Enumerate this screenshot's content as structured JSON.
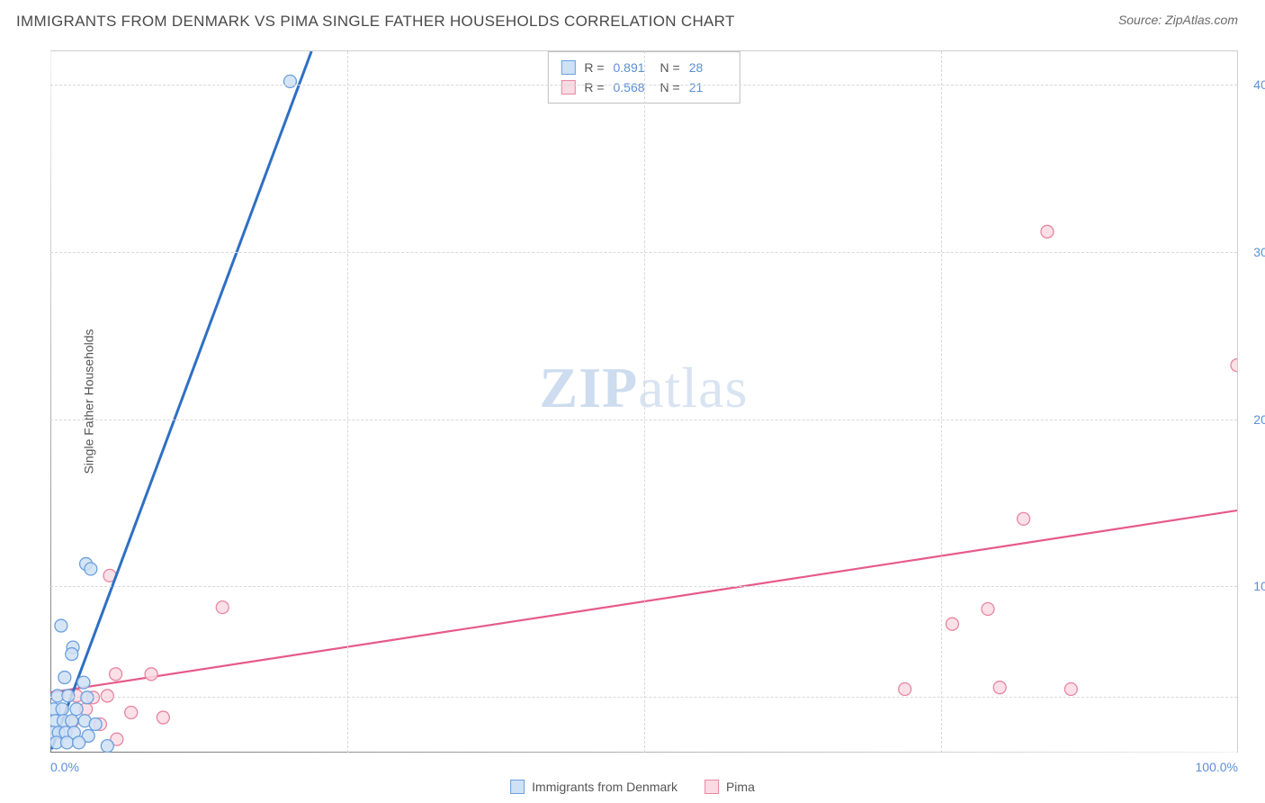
{
  "title": "IMMIGRANTS FROM DENMARK VS PIMA SINGLE FATHER HOUSEHOLDS CORRELATION CHART",
  "source_label": "Source: ZipAtlas.com",
  "y_axis_label": "Single Father Households",
  "watermark": {
    "zip": "ZIP",
    "atlas": "atlas"
  },
  "chart": {
    "type": "scatter",
    "xlim": [
      0,
      100
    ],
    "ylim": [
      0,
      42
    ],
    "x_ticks": [
      0,
      25,
      50,
      75,
      100
    ],
    "x_tick_labels": [
      "0.0%",
      "",
      "",
      "",
      "100.0%"
    ],
    "y_ticks": [
      10,
      20,
      30,
      40
    ],
    "y_tick_labels": [
      "10.0%",
      "20.0%",
      "30.0%",
      "40.0%"
    ],
    "y_grid_extra": [
      3.4
    ],
    "background_color": "#ffffff",
    "grid_color": "#d8d8d8",
    "marker_radius": 7,
    "marker_stroke_width": 1.3,
    "trend_line_width_blue": 3,
    "trend_line_width_pink": 2.2
  },
  "series": {
    "denmark": {
      "label": "Immigrants from Denmark",
      "fill": "#cfe1f5",
      "stroke": "#6aa0de",
      "line_color": "#2f6fc4",
      "r_value": "0.891",
      "n_value": "28",
      "trend": {
        "x1": 0.1,
        "y1": 0.2,
        "x2": 22,
        "y2": 42
      },
      "points": [
        [
          20.2,
          40.2
        ],
        [
          3.0,
          11.3
        ],
        [
          3.4,
          11.0
        ],
        [
          0.9,
          7.6
        ],
        [
          1.9,
          6.3
        ],
        [
          1.8,
          5.9
        ],
        [
          1.2,
          4.5
        ],
        [
          2.8,
          4.2
        ],
        [
          0.6,
          3.4
        ],
        [
          1.5,
          3.4
        ],
        [
          3.1,
          3.3
        ],
        [
          0.3,
          2.6
        ],
        [
          1.0,
          2.6
        ],
        [
          2.2,
          2.6
        ],
        [
          0.4,
          1.9
        ],
        [
          1.1,
          1.9
        ],
        [
          1.8,
          1.9
        ],
        [
          2.9,
          1.9
        ],
        [
          3.8,
          1.7
        ],
        [
          0.2,
          1.2
        ],
        [
          0.7,
          1.2
        ],
        [
          1.3,
          1.2
        ],
        [
          2.0,
          1.2
        ],
        [
          3.2,
          1.0
        ],
        [
          0.5,
          0.6
        ],
        [
          1.4,
          0.6
        ],
        [
          2.4,
          0.6
        ],
        [
          4.8,
          0.4
        ]
      ]
    },
    "pima": {
      "label": "Pima",
      "fill": "#fadbe3",
      "stroke": "#e786a1",
      "line_color": "#e65a8a",
      "r_value": "0.568",
      "n_value": "21",
      "trend": {
        "x1": 0,
        "y1": 3.6,
        "x2": 100,
        "y2": 14.5
      },
      "points": [
        [
          84,
          31.2
        ],
        [
          100,
          23.2
        ],
        [
          82,
          14.0
        ],
        [
          5.0,
          10.6
        ],
        [
          14.5,
          8.7
        ],
        [
          79,
          8.6
        ],
        [
          76,
          7.7
        ],
        [
          5.5,
          4.7
        ],
        [
          8.5,
          4.7
        ],
        [
          72,
          3.8
        ],
        [
          80,
          3.9
        ],
        [
          86,
          3.8
        ],
        [
          2.2,
          3.4
        ],
        [
          3.6,
          3.3
        ],
        [
          4.8,
          3.4
        ],
        [
          3.0,
          2.6
        ],
        [
          6.8,
          2.4
        ],
        [
          9.5,
          2.1
        ],
        [
          1.8,
          1.8
        ],
        [
          4.2,
          1.7
        ],
        [
          5.6,
          0.8
        ]
      ]
    }
  },
  "stats_legend": {
    "r_label": "R =",
    "n_label": "N ="
  },
  "colors": {
    "axis_text": "#5b8fd6",
    "body_text": "#555555",
    "title_text": "#4a4a4a"
  }
}
